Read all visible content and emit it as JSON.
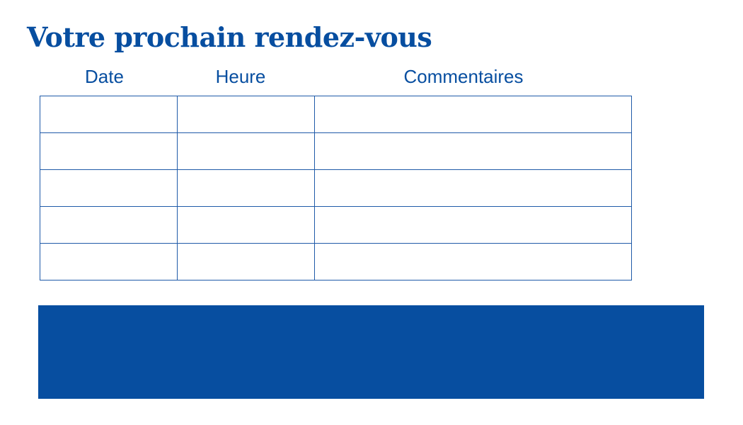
{
  "title": "Votre prochain rendez-vous",
  "table": {
    "headers": [
      "Date",
      "Heure",
      "Commentaires"
    ],
    "rows": [
      [
        "",
        "",
        ""
      ],
      [
        "",
        "",
        ""
      ],
      [
        "",
        "",
        ""
      ],
      [
        "",
        "",
        ""
      ],
      [
        "",
        "",
        ""
      ]
    ]
  },
  "colors": {
    "brand_blue": "#074ea0"
  }
}
